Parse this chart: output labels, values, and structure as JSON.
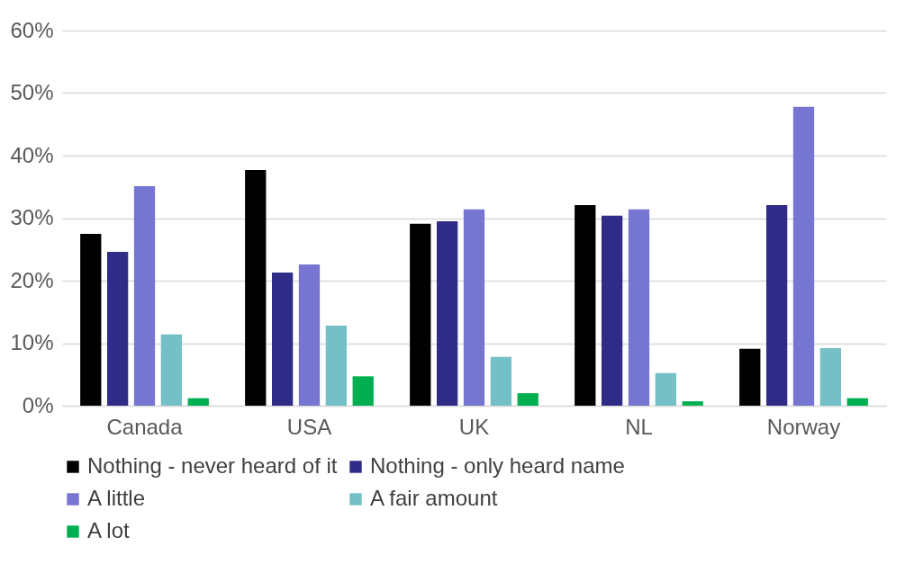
{
  "chart_data": {
    "type": "bar",
    "categories": [
      "Canada",
      "USA",
      "UK",
      "NL",
      "Norway"
    ],
    "series": [
      {
        "name": "Nothing - never heard of it",
        "color": "#000000",
        "values": [
          27.5,
          37.7,
          29.1,
          32.1,
          9.1
        ]
      },
      {
        "name": "Nothing - only heard name",
        "color": "#2e2c86",
        "values": [
          24.6,
          21.3,
          29.5,
          30.4,
          32.1
        ]
      },
      {
        "name": "A little",
        "color": "#7775d2",
        "values": [
          35.1,
          22.6,
          31.4,
          31.4,
          47.8
        ]
      },
      {
        "name": "A fair amount",
        "color": "#75bfc6",
        "values": [
          11.4,
          12.8,
          7.8,
          5.2,
          9.2
        ]
      },
      {
        "name": "A lot",
        "color": "#00b050",
        "values": [
          1.2,
          4.7,
          2.0,
          0.7,
          1.2
        ]
      }
    ],
    "ylim": [
      0,
      60
    ],
    "yticks": [
      {
        "value": 0,
        "label": "0%"
      },
      {
        "value": 10,
        "label": "10%"
      },
      {
        "value": 20,
        "label": "20%"
      },
      {
        "value": 30,
        "label": "30%"
      },
      {
        "value": 40,
        "label": "40%"
      },
      {
        "value": 50,
        "label": "50%"
      },
      {
        "value": 60,
        "label": "60%"
      }
    ],
    "grid": "y",
    "legend": "bottom"
  }
}
